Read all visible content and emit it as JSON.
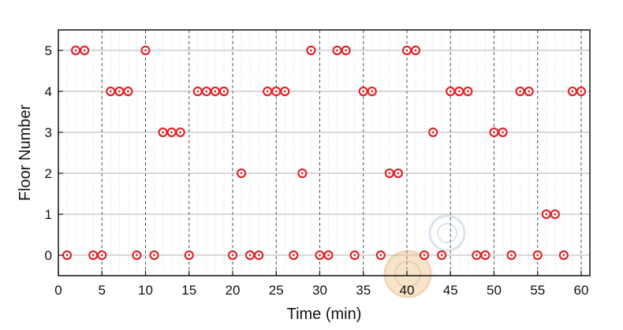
{
  "chart_data": {
    "type": "scatter",
    "xlabel": "Time (min)",
    "ylabel": "Floor Number",
    "xlim": [
      0,
      61
    ],
    "ylim": [
      -0.5,
      5.5
    ],
    "x_ticks": [
      0,
      5,
      10,
      15,
      20,
      25,
      30,
      35,
      40,
      45,
      50,
      55,
      60
    ],
    "y_ticks": [
      0,
      1,
      2,
      3,
      4,
      5
    ],
    "x_tick_labels": [
      "0",
      "5",
      "10",
      "15",
      "20",
      "25",
      "30",
      "35",
      "40",
      "45",
      "50",
      "55",
      "60"
    ],
    "y_tick_labels": [
      "0",
      "1",
      "2",
      "3",
      "4",
      "5"
    ],
    "grid": {
      "x_dashed_at_ticks": true,
      "x_minor_dotted": true,
      "y_solid_at_ticks": true
    },
    "marker": {
      "shape": "hollow-circle",
      "color": "#e0262b"
    },
    "series": [
      {
        "x": [
          1,
          2,
          3,
          4,
          5,
          6,
          7,
          8,
          9,
          10,
          11,
          12,
          13,
          14,
          15,
          16,
          17,
          18,
          19,
          20,
          21,
          22,
          23,
          24,
          25,
          26,
          27,
          28,
          29,
          30,
          31,
          32,
          33,
          34,
          35,
          36,
          37,
          38,
          39,
          40,
          41,
          42,
          43,
          44,
          45,
          46,
          47,
          48,
          49,
          50,
          51,
          52,
          53,
          54,
          55,
          56,
          57,
          58,
          59,
          60
        ],
        "y": [
          0,
          5,
          5,
          0,
          0,
          4,
          4,
          4,
          0,
          5,
          0,
          3,
          3,
          3,
          0,
          4,
          4,
          4,
          4,
          0,
          2,
          0,
          0,
          4,
          4,
          4,
          0,
          2,
          5,
          0,
          0,
          5,
          5,
          0,
          4,
          4,
          0,
          2,
          2,
          5,
          5,
          0,
          3,
          0,
          4,
          4,
          4,
          0,
          0,
          3,
          3,
          0,
          4,
          4,
          0,
          1,
          1,
          0,
          4,
          4
        ]
      }
    ]
  },
  "colors": {
    "marker": "#e0262b",
    "axis": "#111111",
    "major_grid": "#555555",
    "minor_grid": "#bbbbbb"
  }
}
